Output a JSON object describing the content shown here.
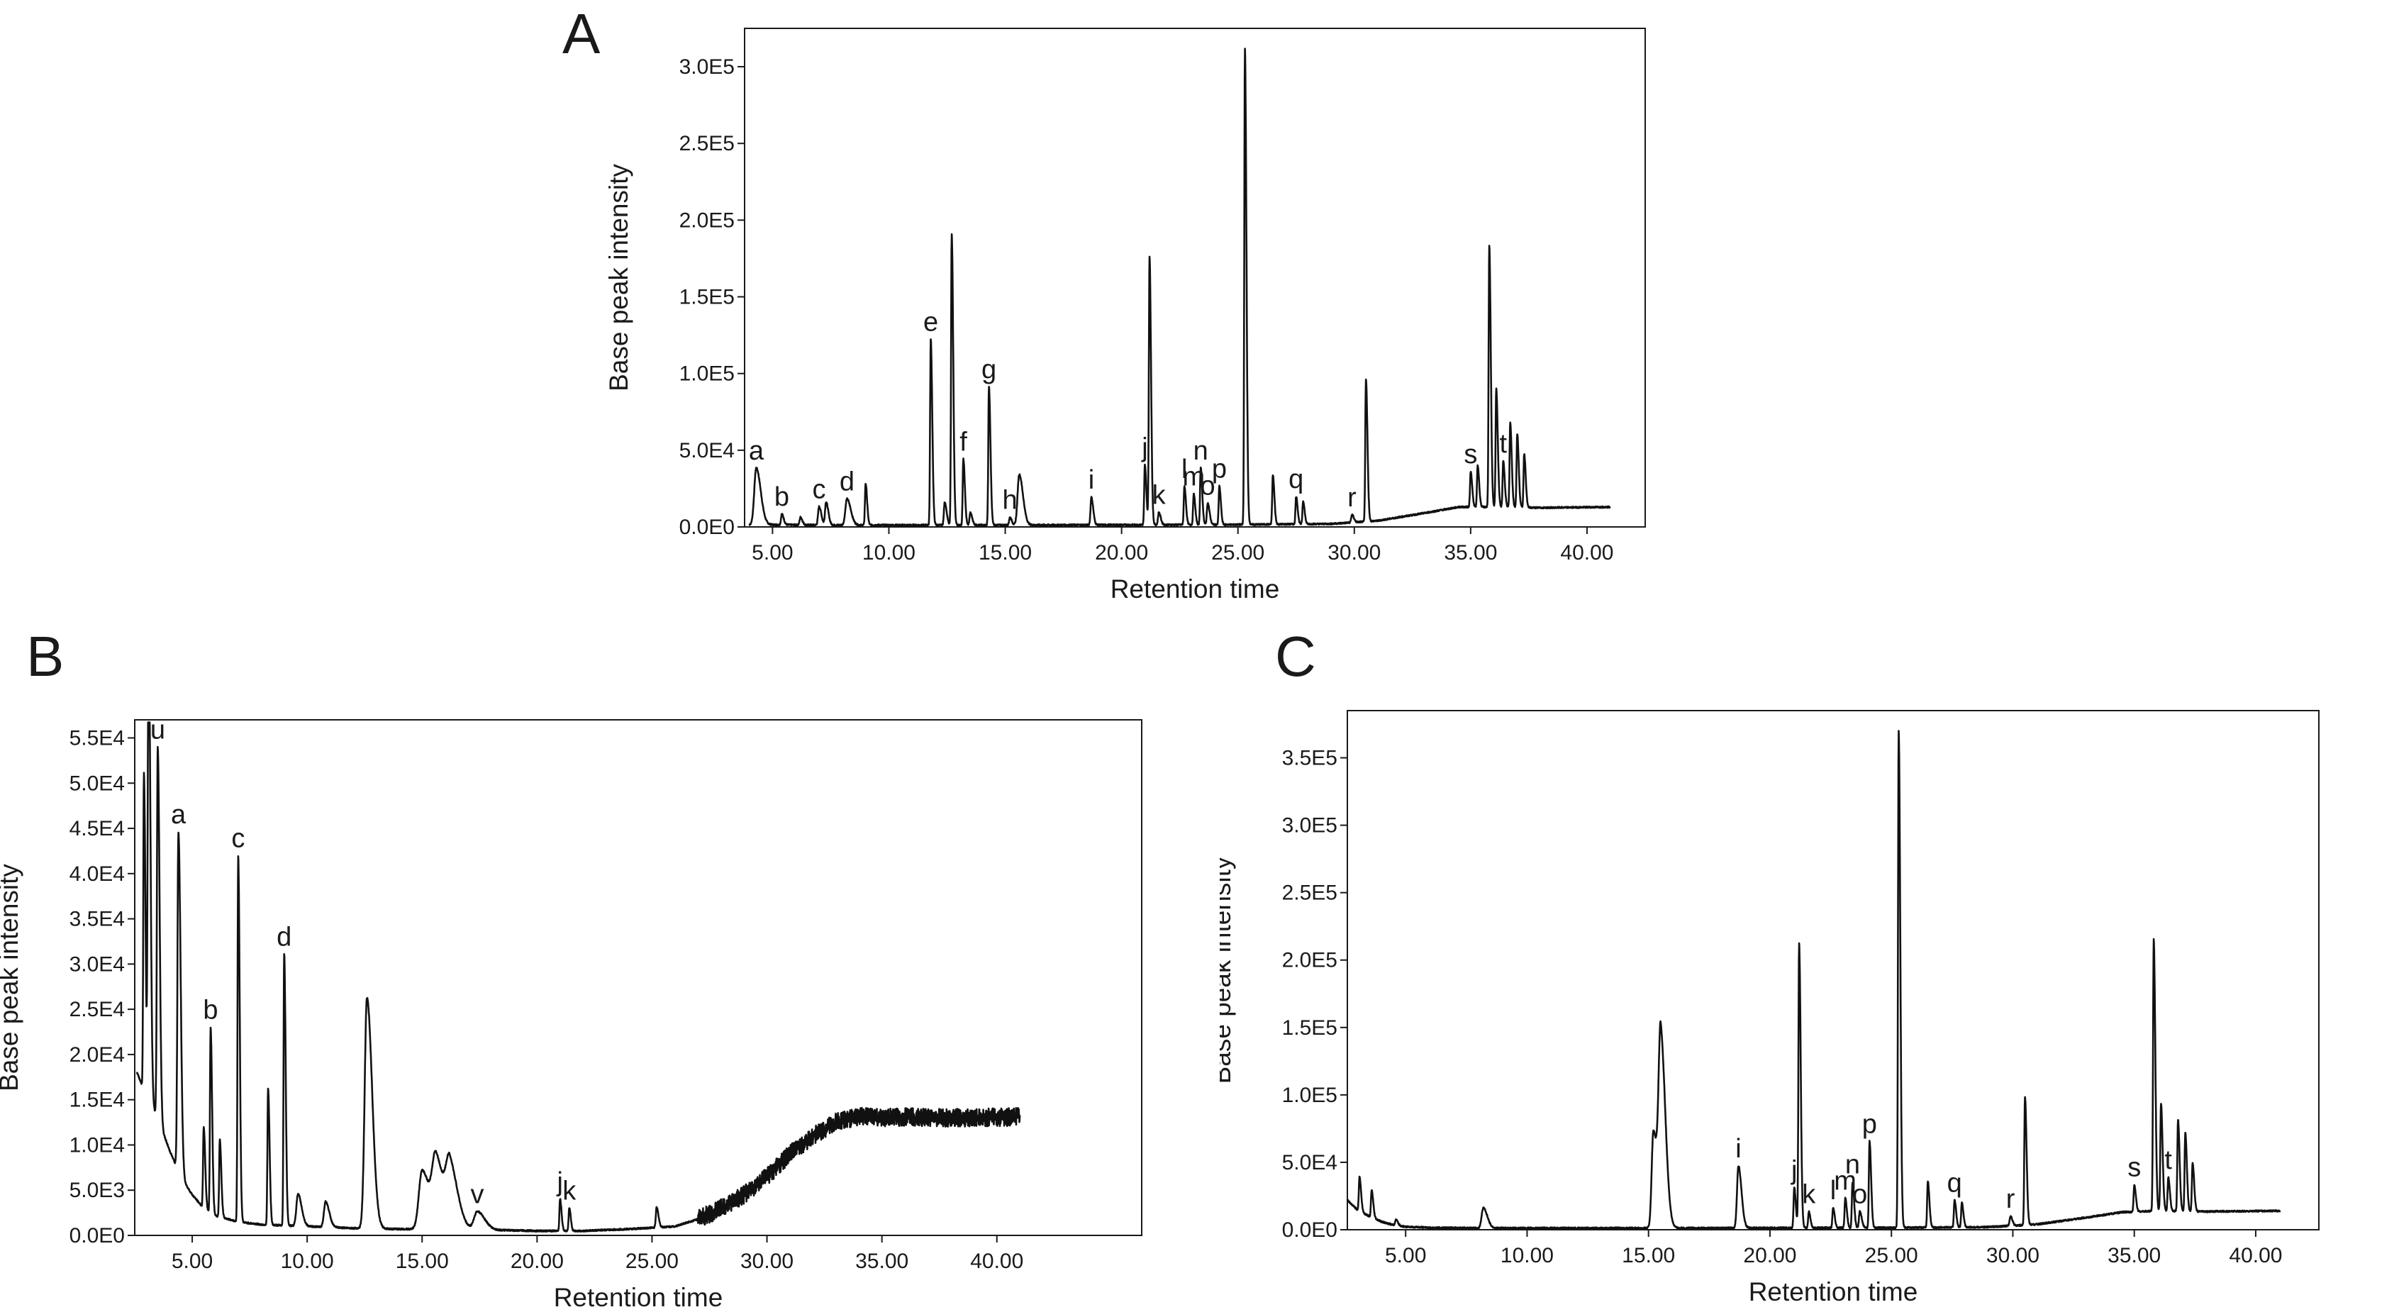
{
  "chart_data": [
    {
      "panel": "A",
      "type": "line",
      "xlabel": "Retention time",
      "ylabel": "Base peak intensity",
      "xlim": [
        3.8,
        42.5
      ],
      "ylim": [
        0,
        325000
      ],
      "x_ticks": [
        5,
        10,
        15,
        20,
        25,
        30,
        35,
        40
      ],
      "x_tick_labels": [
        "5.00",
        "10.00",
        "15.00",
        "20.00",
        "25.00",
        "30.00",
        "35.00",
        "40.00"
      ],
      "y_ticks": [
        0,
        50000,
        100000,
        150000,
        200000,
        250000,
        300000
      ],
      "y_tick_labels": [
        "0.0E0",
        "5.0E4",
        "1.0E5",
        "1.5E5",
        "2.0E5",
        "2.5E5",
        "3.0E5"
      ],
      "baseline": [
        [
          4.0,
          1500
        ],
        [
          8.0,
          1200
        ],
        [
          15.0,
          1200
        ],
        [
          25.0,
          1500
        ],
        [
          29.0,
          2000
        ],
        [
          31.0,
          4000
        ],
        [
          33.0,
          9000
        ],
        [
          34.5,
          13000
        ],
        [
          36.0,
          13000
        ],
        [
          38.0,
          12500
        ],
        [
          41.0,
          13000
        ]
      ],
      "peaks": [
        {
          "x": 4.3,
          "y": 37000,
          "w": 0.12,
          "label": "a"
        },
        {
          "x": 5.4,
          "y": 7000,
          "w": 0.05,
          "label": "b"
        },
        {
          "x": 6.2,
          "y": 5000,
          "w": 0.05
        },
        {
          "x": 7.0,
          "y": 12000,
          "w": 0.06,
          "label": "c"
        },
        {
          "x": 7.3,
          "y": 15000,
          "w": 0.06
        },
        {
          "x": 8.2,
          "y": 17000,
          "w": 0.1,
          "label": "d"
        },
        {
          "x": 9.0,
          "y": 27000,
          "w": 0.04
        },
        {
          "x": 11.8,
          "y": 121000,
          "w": 0.04,
          "label": "e"
        },
        {
          "x": 12.4,
          "y": 15000,
          "w": 0.05
        },
        {
          "x": 12.7,
          "y": 190000,
          "w": 0.04
        },
        {
          "x": 13.2,
          "y": 43000,
          "w": 0.04,
          "label": "f"
        },
        {
          "x": 13.5,
          "y": 8000,
          "w": 0.05
        },
        {
          "x": 14.3,
          "y": 90000,
          "w": 0.04,
          "label": "g"
        },
        {
          "x": 15.2,
          "y": 5000,
          "w": 0.05,
          "label": "h"
        },
        {
          "x": 15.6,
          "y": 33000,
          "w": 0.1
        },
        {
          "x": 18.7,
          "y": 18000,
          "w": 0.05,
          "label": "i"
        },
        {
          "x": 21.0,
          "y": 39000,
          "w": 0.04,
          "label": "j"
        },
        {
          "x": 21.2,
          "y": 175000,
          "w": 0.04
        },
        {
          "x": 21.6,
          "y": 8000,
          "w": 0.05,
          "label": "k"
        },
        {
          "x": 22.7,
          "y": 25000,
          "w": 0.04,
          "label": "l"
        },
        {
          "x": 23.1,
          "y": 20000,
          "w": 0.04,
          "label": "m"
        },
        {
          "x": 23.4,
          "y": 37000,
          "w": 0.04,
          "label": "n"
        },
        {
          "x": 23.7,
          "y": 14000,
          "w": 0.05,
          "label": "o"
        },
        {
          "x": 24.2,
          "y": 25000,
          "w": 0.04,
          "label": "p"
        },
        {
          "x": 25.3,
          "y": 310000,
          "w": 0.04
        },
        {
          "x": 26.5,
          "y": 32000,
          "w": 0.04
        },
        {
          "x": 27.5,
          "y": 18000,
          "w": 0.04,
          "label": "q"
        },
        {
          "x": 27.8,
          "y": 15000,
          "w": 0.04
        },
        {
          "x": 29.9,
          "y": 5000,
          "w": 0.05,
          "label": "r"
        },
        {
          "x": 30.5,
          "y": 93000,
          "w": 0.04
        },
        {
          "x": 35.0,
          "y": 23000,
          "w": 0.04,
          "label": "s"
        },
        {
          "x": 35.3,
          "y": 27000,
          "w": 0.04
        },
        {
          "x": 35.8,
          "y": 170000,
          "w": 0.04
        },
        {
          "x": 36.1,
          "y": 77000,
          "w": 0.04
        },
        {
          "x": 36.4,
          "y": 30000,
          "w": 0.04,
          "label": "t"
        },
        {
          "x": 36.7,
          "y": 55000,
          "w": 0.04
        },
        {
          "x": 37.0,
          "y": 48000,
          "w": 0.04
        },
        {
          "x": 37.3,
          "y": 35000,
          "w": 0.04
        }
      ]
    },
    {
      "panel": "B",
      "type": "line",
      "xlabel": "Retention time",
      "ylabel": "Base peak intensity",
      "xlim": [
        2.5,
        46.3
      ],
      "ylim": [
        0,
        57000
      ],
      "x_ticks": [
        5,
        10,
        15,
        20,
        25,
        30,
        35,
        40
      ],
      "x_tick_labels": [
        "5.00",
        "10.00",
        "15.00",
        "20.00",
        "25.00",
        "30.00",
        "35.00",
        "40.00"
      ],
      "y_ticks": [
        0,
        5000,
        10000,
        15000,
        20000,
        25000,
        30000,
        35000,
        40000,
        45000,
        50000,
        55000
      ],
      "y_tick_labels": [
        "0.0E0",
        "5.0E3",
        "1.0E4",
        "1.5E4",
        "2.0E4",
        "2.5E4",
        "3.0E4",
        "3.5E4",
        "4.0E4",
        "4.5E4",
        "5.0E4",
        "5.5E4"
      ],
      "baseline": [
        [
          2.6,
          18000
        ],
        [
          3.0,
          15500
        ],
        [
          3.5,
          13000
        ],
        [
          4.0,
          9500
        ],
        [
          4.5,
          6500
        ],
        [
          5.0,
          4500
        ],
        [
          5.5,
          3000
        ],
        [
          6.0,
          2200
        ],
        [
          7.0,
          1500
        ],
        [
          8.0,
          1200
        ],
        [
          10.0,
          1000
        ],
        [
          12.0,
          800
        ],
        [
          14.0,
          700
        ],
        [
          16.0,
          700
        ],
        [
          18.0,
          600
        ],
        [
          20.0,
          500
        ],
        [
          22.0,
          500
        ],
        [
          24.0,
          700
        ],
        [
          26.0,
          1000
        ],
        [
          27.0,
          1800
        ],
        [
          28.0,
          3000
        ],
        [
          29.0,
          4500
        ],
        [
          30.0,
          6500
        ],
        [
          31.0,
          9000
        ],
        [
          32.0,
          11000
        ],
        [
          33.0,
          12500
        ],
        [
          34.0,
          13200
        ],
        [
          35.0,
          13000
        ],
        [
          36.0,
          13100
        ],
        [
          38.0,
          13000
        ],
        [
          41.0,
          13100
        ]
      ],
      "noisy_from": 27.0,
      "peaks": [
        {
          "x": 2.9,
          "y": 35000,
          "w": 0.04
        },
        {
          "x": 3.1,
          "y": 53000,
          "w": 0.05
        },
        {
          "x": 3.5,
          "y": 41000,
          "w": 0.05,
          "label": "u"
        },
        {
          "x": 4.4,
          "y": 37500,
          "w": 0.06,
          "label": "a"
        },
        {
          "x": 5.5,
          "y": 9000,
          "w": 0.04
        },
        {
          "x": 5.8,
          "y": 20500,
          "w": 0.04,
          "label": "b"
        },
        {
          "x": 6.2,
          "y": 8500,
          "w": 0.04
        },
        {
          "x": 7.0,
          "y": 40500,
          "w": 0.04,
          "label": "c"
        },
        {
          "x": 8.3,
          "y": 15000,
          "w": 0.04
        },
        {
          "x": 9.0,
          "y": 30000,
          "w": 0.04,
          "label": "d"
        },
        {
          "x": 9.6,
          "y": 3500,
          "w": 0.1
        },
        {
          "x": 10.8,
          "y": 2800,
          "w": 0.1
        },
        {
          "x": 12.6,
          "y": 25500,
          "w": 0.14
        },
        {
          "x": 15.0,
          "y": 6500,
          "w": 0.2
        },
        {
          "x": 15.6,
          "y": 7500,
          "w": 0.22
        },
        {
          "x": 16.2,
          "y": 6500,
          "w": 0.22
        },
        {
          "x": 17.4,
          "y": 2000,
          "w": 0.2,
          "label": "v"
        },
        {
          "x": 21.0,
          "y": 3500,
          "w": 0.04,
          "label": "j"
        },
        {
          "x": 21.4,
          "y": 2500,
          "w": 0.04,
          "label": "k"
        },
        {
          "x": 25.2,
          "y": 2200,
          "w": 0.05
        }
      ]
    },
    {
      "panel": "C",
      "type": "line",
      "xlabel": "Retention time",
      "ylabel": "Base peak intensity",
      "xlim": [
        2.6,
        42.6
      ],
      "ylim": [
        0,
        385000
      ],
      "x_ticks": [
        5,
        10,
        15,
        20,
        25,
        30,
        35,
        40
      ],
      "x_tick_labels": [
        "5.00",
        "10.00",
        "15.00",
        "20.00",
        "25.00",
        "30.00",
        "35.00",
        "40.00"
      ],
      "y_ticks": [
        0,
        50000,
        100000,
        150000,
        200000,
        250000,
        300000,
        350000
      ],
      "y_tick_labels": [
        "0.0E0",
        "5.0E4",
        "1.0E5",
        "1.5E5",
        "2.0E5",
        "2.5E5",
        "3.0E5",
        "3.5E5"
      ],
      "baseline": [
        [
          2.6,
          22000
        ],
        [
          3.0,
          15000
        ],
        [
          3.5,
          10000
        ],
        [
          4.0,
          6000
        ],
        [
          4.5,
          3500
        ],
        [
          5.0,
          2200
        ],
        [
          6.0,
          1500
        ],
        [
          8.0,
          1200
        ],
        [
          15.0,
          1200
        ],
        [
          25.0,
          1500
        ],
        [
          29.0,
          2000
        ],
        [
          31.0,
          4000
        ],
        [
          33.0,
          9000
        ],
        [
          34.5,
          13000
        ],
        [
          36.0,
          14000
        ],
        [
          38.0,
          13500
        ],
        [
          41.0,
          14000
        ]
      ],
      "peaks": [
        {
          "x": 3.1,
          "y": 25000,
          "w": 0.04
        },
        {
          "x": 3.6,
          "y": 20000,
          "w": 0.04
        },
        {
          "x": 4.6,
          "y": 4000,
          "w": 0.05
        },
        {
          "x": 8.2,
          "y": 15000,
          "w": 0.1
        },
        {
          "x": 15.2,
          "y": 72000,
          "w": 0.1
        },
        {
          "x": 15.5,
          "y": 140000,
          "w": 0.12
        },
        {
          "x": 18.7,
          "y": 46000,
          "w": 0.08,
          "label": "i"
        },
        {
          "x": 21.0,
          "y": 30000,
          "w": 0.04,
          "label": "j"
        },
        {
          "x": 21.2,
          "y": 211000,
          "w": 0.04
        },
        {
          "x": 21.6,
          "y": 12000,
          "w": 0.04,
          "label": "k"
        },
        {
          "x": 22.6,
          "y": 15000,
          "w": 0.04,
          "label": "l"
        },
        {
          "x": 23.1,
          "y": 22000,
          "w": 0.04,
          "label": "m"
        },
        {
          "x": 23.4,
          "y": 34000,
          "w": 0.04,
          "label": "n"
        },
        {
          "x": 23.7,
          "y": 12000,
          "w": 0.05,
          "label": "o"
        },
        {
          "x": 24.1,
          "y": 64000,
          "w": 0.04,
          "label": "p"
        },
        {
          "x": 25.3,
          "y": 368000,
          "w": 0.04
        },
        {
          "x": 26.5,
          "y": 34000,
          "w": 0.04
        },
        {
          "x": 27.6,
          "y": 20000,
          "w": 0.04,
          "label": "q"
        },
        {
          "x": 27.9,
          "y": 18000,
          "w": 0.04
        },
        {
          "x": 29.9,
          "y": 7000,
          "w": 0.05,
          "label": "r"
        },
        {
          "x": 30.5,
          "y": 95000,
          "w": 0.04
        },
        {
          "x": 35.0,
          "y": 20000,
          "w": 0.04,
          "label": "s"
        },
        {
          "x": 35.8,
          "y": 202000,
          "w": 0.04
        },
        {
          "x": 36.1,
          "y": 80000,
          "w": 0.04
        },
        {
          "x": 36.4,
          "y": 25000,
          "w": 0.04,
          "label": "t"
        },
        {
          "x": 36.8,
          "y": 68000,
          "w": 0.04
        },
        {
          "x": 37.1,
          "y": 58000,
          "w": 0.04
        },
        {
          "x": 37.4,
          "y": 36000,
          "w": 0.04
        }
      ]
    }
  ]
}
